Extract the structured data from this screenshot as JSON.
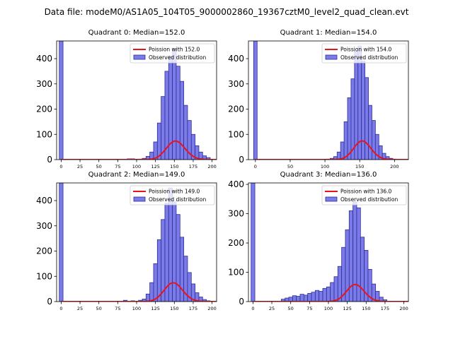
{
  "figure": {
    "suptitle": "Data file: modeM0/AS1A05_104T05_9000002860_19367cztM0_level2_quad_clean.evt"
  },
  "colors": {
    "bar_fill": "#7b7be8",
    "bar_edge": "#2c2c9a",
    "poisson_line": "#e8141c"
  },
  "chart_data": [
    {
      "type": "bar",
      "title": "Quadrant 0: Median=152.0",
      "median": 152.0,
      "bin_width": 5,
      "xlim": [
        -6,
        206
      ],
      "ylim": [
        0,
        470
      ],
      "xticks": [
        0,
        25,
        50,
        75,
        100,
        125,
        150,
        175,
        200
      ],
      "yticks": [
        0,
        100,
        200,
        300,
        400
      ],
      "bins": [
        {
          "x": 0,
          "count": 470
        },
        {
          "x": 90,
          "count": 3
        },
        {
          "x": 95,
          "count": 3
        },
        {
          "x": 105,
          "count": 2
        },
        {
          "x": 110,
          "count": 5
        },
        {
          "x": 115,
          "count": 13
        },
        {
          "x": 120,
          "count": 30
        },
        {
          "x": 125,
          "count": 70
        },
        {
          "x": 130,
          "count": 145
        },
        {
          "x": 135,
          "count": 250
        },
        {
          "x": 140,
          "count": 350
        },
        {
          "x": 145,
          "count": 410
        },
        {
          "x": 150,
          "count": 440
        },
        {
          "x": 155,
          "count": 370
        },
        {
          "x": 160,
          "count": 310
        },
        {
          "x": 165,
          "count": 215
        },
        {
          "x": 170,
          "count": 155
        },
        {
          "x": 175,
          "count": 100
        },
        {
          "x": 180,
          "count": 55
        },
        {
          "x": 185,
          "count": 30
        },
        {
          "x": 190,
          "count": 15
        },
        {
          "x": 195,
          "count": 8
        }
      ],
      "series": [
        {
          "name": "Poission with 152.0",
          "kind": "line",
          "lambda": 152.0,
          "scale": 2275
        },
        {
          "name": "Observed distribution",
          "kind": "bar"
        }
      ]
    },
    {
      "type": "bar",
      "title": "Quadrant 1: Median=154.0",
      "median": 154.0,
      "bin_width": 5,
      "xlim": [
        -10,
        220
      ],
      "ylim": [
        0,
        470
      ],
      "xticks": [
        0,
        50,
        100,
        150,
        200
      ],
      "yticks": [
        0,
        100,
        200,
        300,
        400
      ],
      "bins": [
        {
          "x": 0,
          "count": 470
        },
        {
          "x": 105,
          "count": 2
        },
        {
          "x": 110,
          "count": 5
        },
        {
          "x": 115,
          "count": 12
        },
        {
          "x": 120,
          "count": 30
        },
        {
          "x": 125,
          "count": 70
        },
        {
          "x": 130,
          "count": 150
        },
        {
          "x": 135,
          "count": 245
        },
        {
          "x": 140,
          "count": 320
        },
        {
          "x": 145,
          "count": 430
        },
        {
          "x": 150,
          "count": 450
        },
        {
          "x": 155,
          "count": 390
        },
        {
          "x": 160,
          "count": 325
        },
        {
          "x": 165,
          "count": 215
        },
        {
          "x": 170,
          "count": 155
        },
        {
          "x": 175,
          "count": 100
        },
        {
          "x": 180,
          "count": 55
        },
        {
          "x": 185,
          "count": 25
        },
        {
          "x": 190,
          "count": 12
        },
        {
          "x": 195,
          "count": 5
        },
        {
          "x": 200,
          "count": 2
        }
      ],
      "series": [
        {
          "name": "Poission with 154.0",
          "kind": "line",
          "lambda": 154.0,
          "scale": 2300
        },
        {
          "name": "Observed distribution",
          "kind": "bar"
        }
      ]
    },
    {
      "type": "bar",
      "title": "Quadrant 2: Median=149.0",
      "median": 149.0,
      "bin_width": 5,
      "xlim": [
        -6,
        206
      ],
      "ylim": [
        0,
        470
      ],
      "xticks": [
        0,
        25,
        50,
        75,
        100,
        125,
        150,
        175,
        200
      ],
      "yticks": [
        0,
        100,
        200,
        300,
        400
      ],
      "bins": [
        {
          "x": 0,
          "count": 470
        },
        {
          "x": 85,
          "count": 5
        },
        {
          "x": 95,
          "count": 3
        },
        {
          "x": 105,
          "count": 5
        },
        {
          "x": 110,
          "count": 10
        },
        {
          "x": 115,
          "count": 30
        },
        {
          "x": 120,
          "count": 75
        },
        {
          "x": 125,
          "count": 150
        },
        {
          "x": 130,
          "count": 245
        },
        {
          "x": 135,
          "count": 325
        },
        {
          "x": 140,
          "count": 390
        },
        {
          "x": 145,
          "count": 450
        },
        {
          "x": 150,
          "count": 395
        },
        {
          "x": 155,
          "count": 345
        },
        {
          "x": 160,
          "count": 255
        },
        {
          "x": 165,
          "count": 180
        },
        {
          "x": 170,
          "count": 115
        },
        {
          "x": 175,
          "count": 70
        },
        {
          "x": 180,
          "count": 35
        },
        {
          "x": 185,
          "count": 18
        },
        {
          "x": 190,
          "count": 8
        },
        {
          "x": 195,
          "count": 3
        }
      ],
      "series": [
        {
          "name": "Poission with 149.0",
          "kind": "line",
          "lambda": 149.0,
          "scale": 2280
        },
        {
          "name": "Observed distribution",
          "kind": "bar"
        }
      ]
    },
    {
      "type": "bar",
      "title": "Quadrant 3: Median=136.0",
      "median": 136.0,
      "bin_width": 5,
      "xlim": [
        -6,
        206
      ],
      "ylim": [
        0,
        405
      ],
      "xticks": [
        0,
        25,
        50,
        75,
        100,
        125,
        150,
        175,
        200
      ],
      "yticks": [
        0,
        100,
        200,
        300,
        400
      ],
      "bins": [
        {
          "x": 0,
          "count": 405
        },
        {
          "x": 40,
          "count": 8
        },
        {
          "x": 45,
          "count": 12
        },
        {
          "x": 50,
          "count": 15
        },
        {
          "x": 55,
          "count": 20
        },
        {
          "x": 60,
          "count": 18
        },
        {
          "x": 65,
          "count": 25
        },
        {
          "x": 70,
          "count": 22
        },
        {
          "x": 75,
          "count": 28
        },
        {
          "x": 80,
          "count": 32
        },
        {
          "x": 85,
          "count": 38
        },
        {
          "x": 90,
          "count": 35
        },
        {
          "x": 95,
          "count": 45
        },
        {
          "x": 100,
          "count": 50
        },
        {
          "x": 105,
          "count": 65
        },
        {
          "x": 110,
          "count": 85
        },
        {
          "x": 115,
          "count": 120
        },
        {
          "x": 120,
          "count": 185
        },
        {
          "x": 125,
          "count": 245
        },
        {
          "x": 130,
          "count": 310
        },
        {
          "x": 135,
          "count": 340
        },
        {
          "x": 140,
          "count": 320
        },
        {
          "x": 145,
          "count": 220
        },
        {
          "x": 150,
          "count": 175
        },
        {
          "x": 155,
          "count": 110
        },
        {
          "x": 160,
          "count": 60
        },
        {
          "x": 165,
          "count": 35
        },
        {
          "x": 170,
          "count": 15
        },
        {
          "x": 175,
          "count": 6
        }
      ],
      "series": [
        {
          "name": "Poission with 136.0",
          "kind": "line",
          "lambda": 136.0,
          "scale": 1700
        },
        {
          "name": "Observed distribution",
          "kind": "bar"
        }
      ]
    }
  ]
}
